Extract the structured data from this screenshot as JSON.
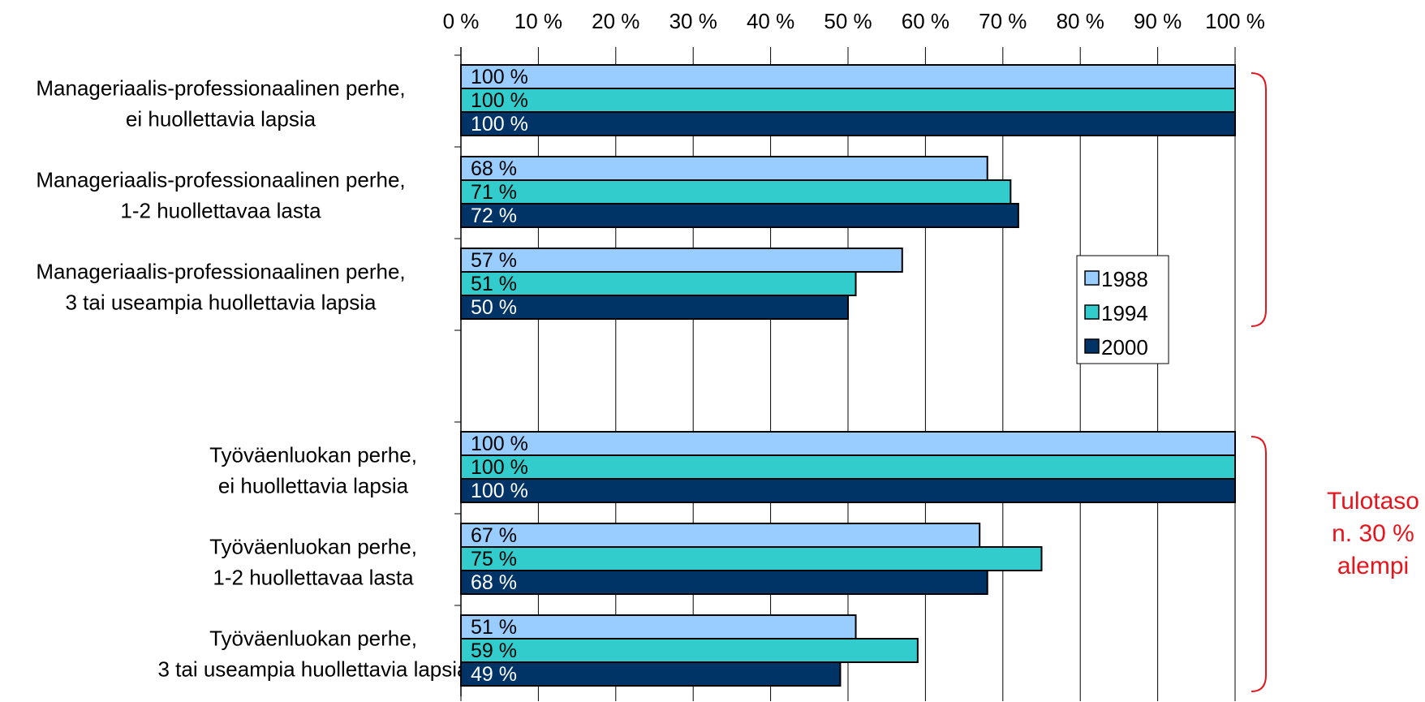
{
  "chart_data": {
    "type": "bar",
    "orientation": "horizontal",
    "xlim": [
      0,
      100
    ],
    "xticks": [
      "0 %",
      "10 %",
      "20 %",
      "30 %",
      "40 %",
      "50 %",
      "60 %",
      "70 %",
      "80 %",
      "90 %",
      "100 %"
    ],
    "grid": true,
    "legend_position": "right",
    "categories": [
      [
        "Manageriaalis-professionaalinen perhe,",
        "ei huollettavia lapsia"
      ],
      [
        "Manageriaalis-professionaalinen perhe,",
        "1-2 huollettavaa lasta"
      ],
      [
        "Manageriaalis-professionaalinen perhe,",
        "3 tai useampia huollettavia lapsia"
      ],
      [
        "",
        ""
      ],
      [
        "Työväenluokan perhe,",
        "ei huollettavia lapsia"
      ],
      [
        "Työväenluokan perhe,",
        "1-2 huollettavaa lasta"
      ],
      [
        "Työväenluokan perhe,",
        "3 tai useampia huollettavia lapsia"
      ]
    ],
    "series": [
      {
        "name": "1988",
        "color": "#99ccff",
        "values": [
          100,
          68,
          57,
          null,
          100,
          67,
          51
        ],
        "labels": [
          "100 %",
          "68 %",
          "57 %",
          "",
          "100 %",
          "67 %",
          "51 %"
        ]
      },
      {
        "name": "1994",
        "color": "#33cccc",
        "values": [
          100,
          71,
          51,
          null,
          100,
          75,
          59
        ],
        "labels": [
          "100 %",
          "71 %",
          "51 %",
          "",
          "100 %",
          "75 %",
          "59 %"
        ]
      },
      {
        "name": "2000",
        "color": "#003366",
        "values": [
          100,
          72,
          50,
          null,
          100,
          68,
          49
        ],
        "labels": [
          "100 %",
          "72 %",
          "50 %",
          "",
          "100 %",
          "68 %",
          "49 %"
        ]
      }
    ],
    "annotation": [
      "Tulotaso",
      "n. 30 %",
      "alempi"
    ],
    "annotation_color": "#e8141c"
  }
}
